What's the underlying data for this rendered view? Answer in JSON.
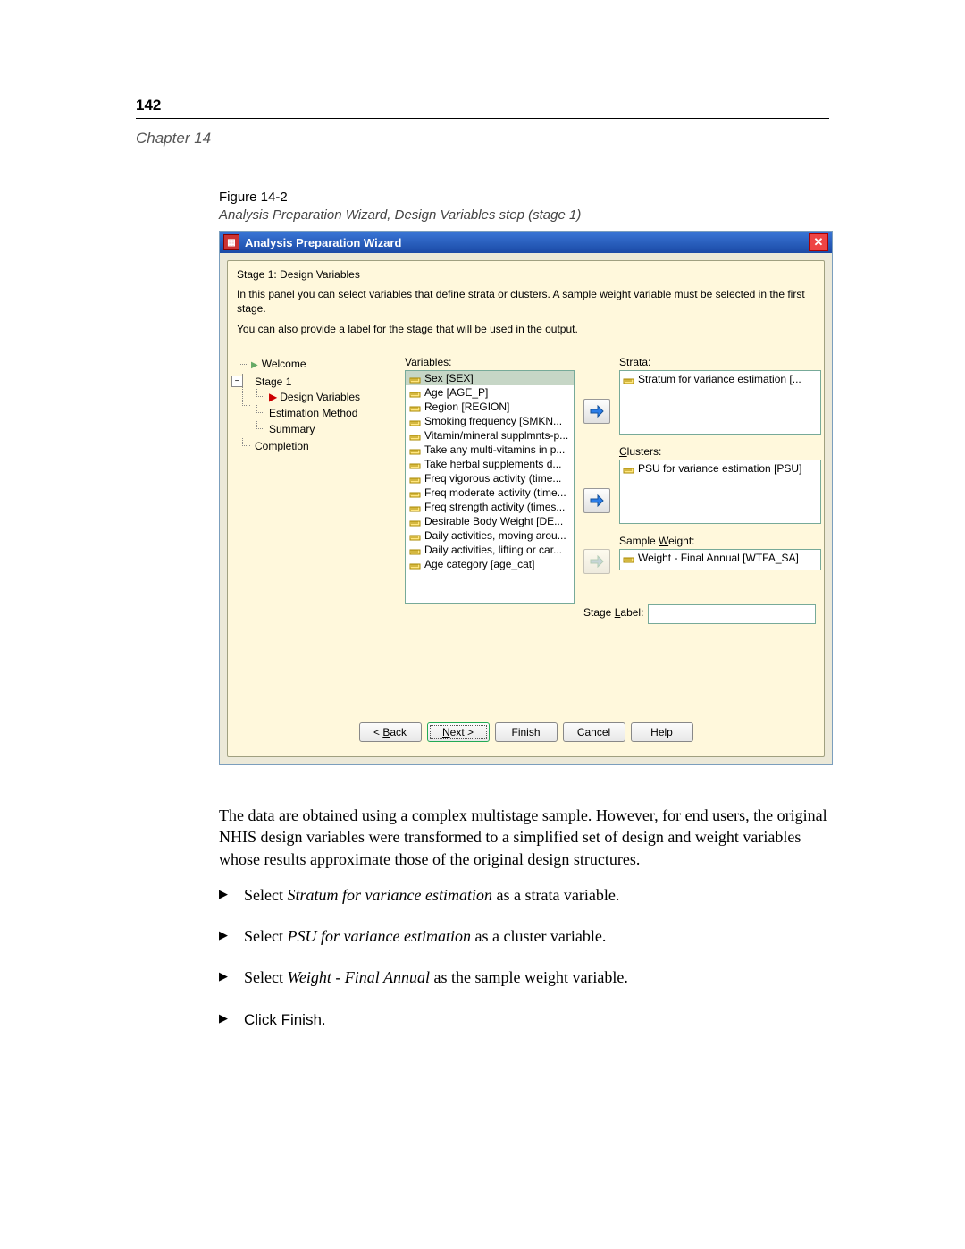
{
  "page_number": "142",
  "chapter": "Chapter 14",
  "figure_label": "Figure 14-2",
  "figure_caption": "Analysis Preparation Wizard, Design Variables step (stage 1)",
  "window": {
    "title": "Analysis Preparation Wizard",
    "stage_header": "Stage 1: Design Variables",
    "desc1": "In this panel you can select variables that define strata or clusters. A sample weight variable must be selected in the first stage.",
    "desc2": "You can also provide a label for the stage that will be used in the output.",
    "tree": {
      "root": "Welcome",
      "stage1": "Stage 1",
      "items": [
        "Design Variables",
        "Estimation Method",
        "Summary"
      ],
      "completion": "Completion"
    },
    "variables_label": "Variables:",
    "variables": [
      "Sex [SEX]",
      "Age [AGE_P]",
      "Region [REGION]",
      "Smoking frequency [SMKN...",
      "Vitamin/mineral supplmnts-p...",
      "Take any multi-vitamins in p...",
      "Take herbal supplements d...",
      "Freq vigorous activity (time...",
      "Freq moderate activity (time...",
      "Freq strength activity (times...",
      "Desirable Body Weight [DE...",
      "Daily activities, moving arou...",
      "Daily activities, lifting or car...",
      "Age category [age_cat]"
    ],
    "strata_label": "Strata:",
    "strata_value": "Stratum for variance estimation [...",
    "clusters_label": "Clusters:",
    "clusters_value": "PSU for variance estimation [PSU]",
    "weight_label": "Sample Weight:",
    "weight_value": "Weight - Final Annual [WTFA_SA]",
    "stage_label_text": "Stage Label:",
    "buttons": {
      "back": "< Back",
      "next": "Next >",
      "finish": "Finish",
      "cancel": "Cancel",
      "help": "Help"
    }
  },
  "body_para": "The data are obtained using a complex multistage sample. However, for end users, the original NHIS design variables were transformed to a simplified set of design and weight variables whose results approximate those of the original design structures.",
  "steps": {
    "s1a": "Select ",
    "s1i": "Stratum for variance estimation",
    "s1b": " as a strata variable.",
    "s2a": "Select ",
    "s2i": "PSU for variance estimation",
    "s2b": " as a cluster variable.",
    "s3a": "Select ",
    "s3i": "Weight - Final Annual",
    "s3b": " as the sample weight variable.",
    "s4": "Click Finish."
  },
  "colors": {
    "titlebar_start": "#3a76d6",
    "titlebar_end": "#1b4aa6",
    "panel_bg": "#fff8dc",
    "selected_bg": "#c6d6c6",
    "close_bg": "#e44"
  }
}
